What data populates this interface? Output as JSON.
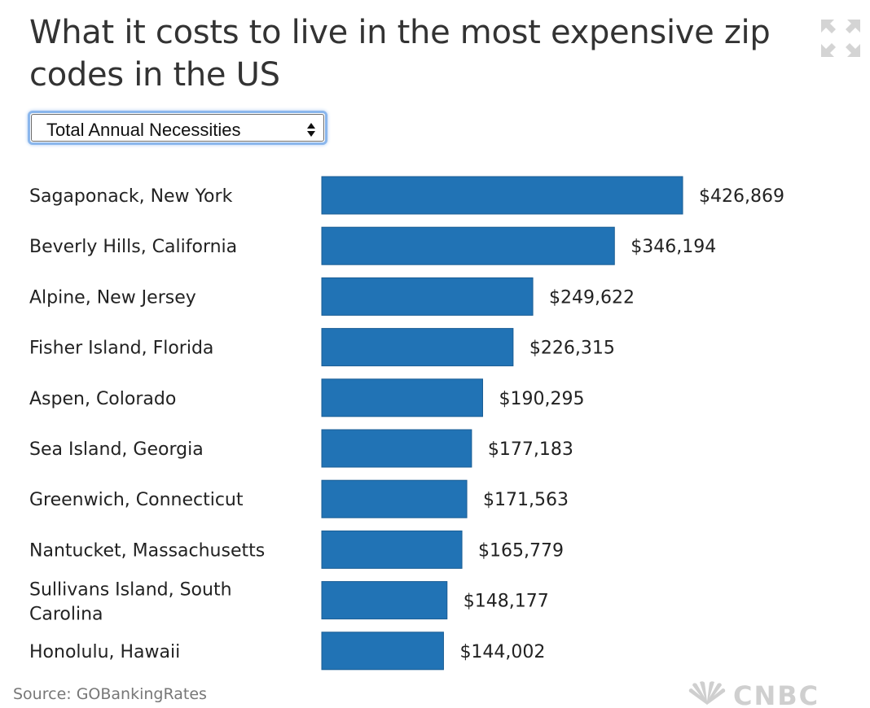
{
  "header": {
    "title": "What it costs to live in the most expensive zip codes in the US"
  },
  "controls": {
    "metric_select_value": "Total Annual Necessities",
    "expand_icon": "expand-icon"
  },
  "colors": {
    "bar": "#2173b5",
    "bar_edge": "#1a5d94",
    "text": "#222222",
    "source_text": "#777777"
  },
  "chart_data": {
    "type": "bar",
    "orientation": "horizontal",
    "categories": [
      "Sagaponack, New York",
      "Beverly Hills, California",
      "Alpine, New Jersey",
      "Fisher Island, Florida",
      "Aspen, Colorado",
      "Sea Island, Georgia",
      "Greenwich, Connecticut",
      "Nantucket, Massachusetts",
      "Sullivans Island, South Carolina",
      "Honolulu, Hawaii"
    ],
    "values": [
      426869,
      346194,
      249622,
      226315,
      190295,
      177183,
      171563,
      165779,
      148177,
      144002
    ],
    "value_labels": [
      "$426,869",
      "$346,194",
      "$249,622",
      "$226,315",
      "$190,295",
      "$177,183",
      "$171,563",
      "$165,779",
      "$148,177",
      "$144,002"
    ],
    "xlim": [
      0,
      426869
    ],
    "grid": false,
    "legend": "none"
  },
  "footer": {
    "source": "Source: GOBankingRates",
    "logo_text": "CNBC",
    "logo_icon": "peacock-icon"
  }
}
